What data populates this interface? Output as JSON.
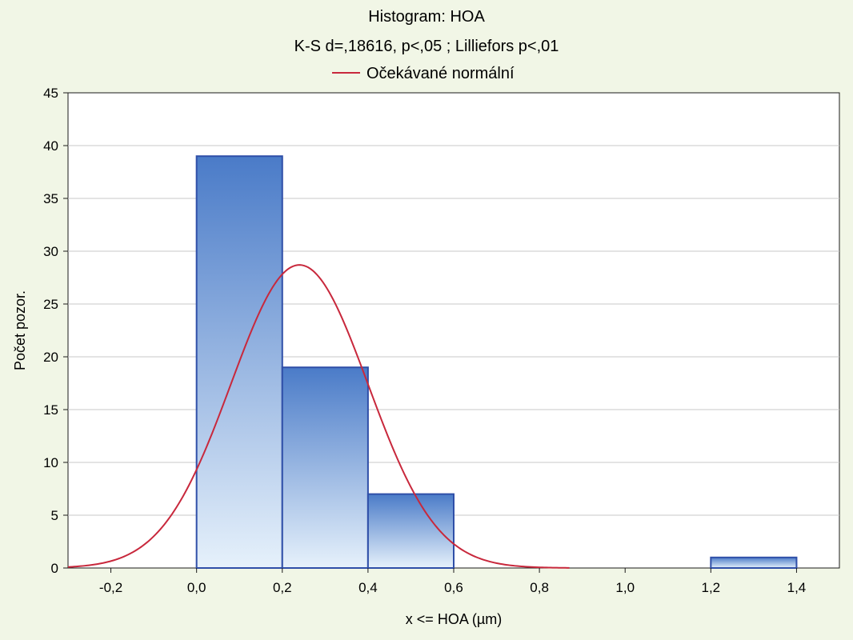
{
  "chart_data": {
    "type": "bar",
    "title": "Histogram: HOA",
    "subtitle": "K-S d=,18616, p<,05 ; Lilliefors p<,01",
    "legend": [
      {
        "label": "Očekávané normální",
        "color": "#c8283c"
      }
    ],
    "xlabel": "x <= HOA (µm)",
    "ylabel": "Počet pozor.",
    "xlim": [
      -0.3,
      1.5
    ],
    "ylim": [
      0,
      45
    ],
    "xticks": [
      "-0,2",
      "0,0",
      "0,2",
      "0,4",
      "0,6",
      "0,8",
      "1,0",
      "1,2",
      "1,4"
    ],
    "xtick_values": [
      -0.2,
      0.0,
      0.2,
      0.4,
      0.6,
      0.8,
      1.0,
      1.2,
      1.4
    ],
    "yticks": [
      "0",
      "5",
      "10",
      "15",
      "20",
      "25",
      "30",
      "35",
      "40",
      "45"
    ],
    "ytick_values": [
      0,
      5,
      10,
      15,
      20,
      25,
      30,
      35,
      40,
      45
    ],
    "grid": true,
    "bins": [
      {
        "from": 0.0,
        "to": 0.2,
        "count": 39
      },
      {
        "from": 0.2,
        "to": 0.4,
        "count": 19
      },
      {
        "from": 0.4,
        "to": 0.6,
        "count": 7
      },
      {
        "from": 1.2,
        "to": 1.4,
        "count": 1
      }
    ],
    "normal_curve": {
      "name": "Očekávané normální",
      "mean": 0.24,
      "peak": 28.7,
      "sd": 0.16,
      "x_range": [
        -0.3,
        0.87
      ]
    },
    "colors": {
      "bar_top": "#4a7bc8",
      "bar_bottom": "#e6f1fb",
      "bar_stroke": "#2f4fa8",
      "curve": "#c8283c",
      "grid": "#c9c9c9",
      "background": "#f1f6e6",
      "plot_bg": "#ffffff"
    }
  }
}
